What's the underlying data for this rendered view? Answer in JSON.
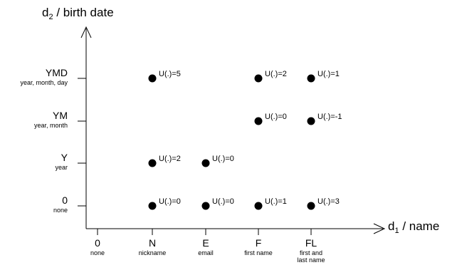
{
  "diagram": {
    "y_axis_title": {
      "prefix": "d",
      "subscript": "2",
      "suffix": " / birth date"
    },
    "x_axis_title": {
      "prefix": "d",
      "subscript": "1",
      "suffix": " / name"
    },
    "y_levels": [
      {
        "id": "0",
        "label": "0",
        "sublabel": "none"
      },
      {
        "id": "Y",
        "label": "Y",
        "sublabel": "year"
      },
      {
        "id": "YM",
        "label": "YM",
        "sublabel": "year, month"
      },
      {
        "id": "YMD",
        "label": "YMD",
        "sublabel": "year, month, day"
      }
    ],
    "x_levels": [
      {
        "id": "0",
        "label": "0",
        "sublabel": [
          "none"
        ]
      },
      {
        "id": "N",
        "label": "N",
        "sublabel": [
          "nickname"
        ]
      },
      {
        "id": "E",
        "label": "E",
        "sublabel": [
          "email"
        ]
      },
      {
        "id": "F",
        "label": "F",
        "sublabel": [
          "first name"
        ]
      },
      {
        "id": "FL",
        "label": "FL",
        "sublabel": [
          "first and",
          "last name"
        ]
      }
    ],
    "points": [
      {
        "x": "N",
        "y": "YMD",
        "label": "U(.)=5"
      },
      {
        "x": "F",
        "y": "YMD",
        "label": "U(.)=2"
      },
      {
        "x": "FL",
        "y": "YMD",
        "label": "U(.)=1"
      },
      {
        "x": "F",
        "y": "YM",
        "label": "U(.)=0"
      },
      {
        "x": "FL",
        "y": "YM",
        "label": "U(.)=-1"
      },
      {
        "x": "N",
        "y": "Y",
        "label": "U(.)=2"
      },
      {
        "x": "E",
        "y": "Y",
        "label": "U(.)=0"
      },
      {
        "x": "N",
        "y": "0",
        "label": "U(.)=0"
      },
      {
        "x": "E",
        "y": "0",
        "label": "U(.)=0"
      },
      {
        "x": "F",
        "y": "0",
        "label": "U(.)=1"
      },
      {
        "x": "FL",
        "y": "0",
        "label": "U(.)=3"
      }
    ]
  }
}
